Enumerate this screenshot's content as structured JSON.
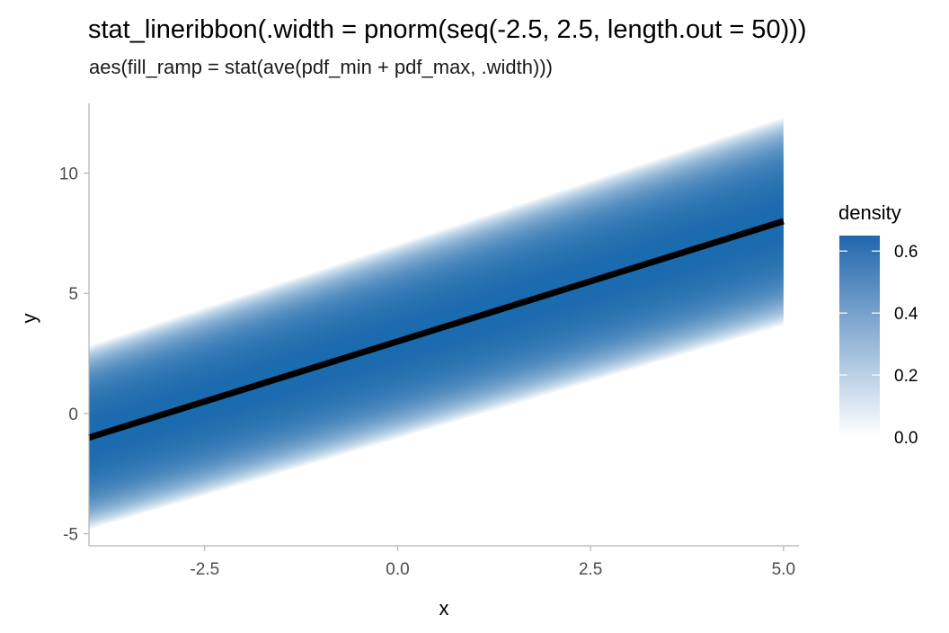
{
  "chart_data": {
    "type": "area",
    "title": "stat_lineribbon(.width = pnorm(seq(-2.5, 2.5, length.out = 50)))",
    "subtitle": "aes(fill_ramp = stat(ave(pdf_min + pdf_max, .width)))",
    "xlabel": "x",
    "ylabel": "y",
    "xlim": [
      -4.0,
      5.2
    ],
    "ylim": [
      -5.5,
      12.9
    ],
    "x_ticks": [
      -2.5,
      0.0,
      2.5,
      5.0
    ],
    "x_tick_labels": [
      "-2.5",
      "0.0",
      "2.5",
      "5.0"
    ],
    "y_ticks": [
      -5,
      0,
      5,
      10
    ],
    "y_tick_labels": [
      "-5",
      "0",
      "5",
      "10"
    ],
    "grid": false,
    "line": {
      "x": [
        -4,
        5
      ],
      "y": [
        -1,
        8
      ],
      "color": "#000000"
    },
    "ribbon": {
      "x": [
        -4,
        5
      ],
      "center": [
        -1,
        8
      ],
      "outer_halfwidth": [
        3.8,
        4.3
      ],
      "color": "#2166ac",
      "levels": 50
    },
    "legend": {
      "title": "density",
      "placement": "right",
      "min": 0.0,
      "max": 0.65,
      "ticks": [
        0.0,
        0.2,
        0.4,
        0.6
      ],
      "tick_labels": [
        "0.0",
        "0.2",
        "0.4",
        "0.6"
      ],
      "color_low": "#ffffff",
      "color_high": "#2166ac"
    }
  }
}
